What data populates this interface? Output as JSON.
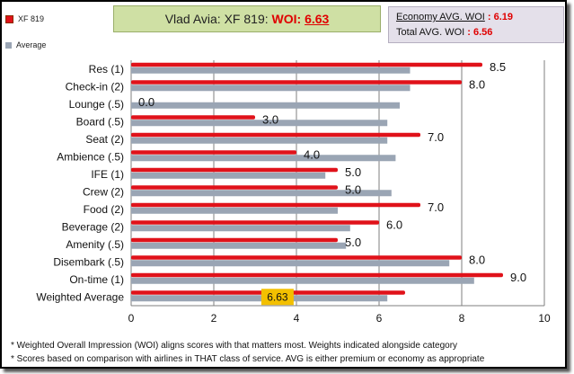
{
  "title": {
    "flight": "Vlad Avia: XF 819:",
    "woi_label": "WOI:",
    "woi_value": "6.63"
  },
  "averages": {
    "economy_label": "Economy AVG. WOI",
    "economy_value": ": 6.19",
    "total_label": "Total AVG. WOI",
    "total_value": ": 6.56"
  },
  "footnotes": [
    "* Weighted Overall Impression (WOI) aligns scores with that matters most. Weights indicated alongside category",
    "* Scores based on comparison with airlines in THAT class of service. AVG is either premium or economy as appropriate"
  ],
  "chart_data": {
    "type": "bar",
    "orientation": "horizontal",
    "categories": [
      "Res (1)",
      "Check-in (2)",
      "Lounge (.5)",
      "Board (.5)",
      "Seat (2)",
      "Ambience (.5)",
      "IFE (1)",
      "Crew (2)",
      "Food (2)",
      "Beverage (2)",
      "Amenity (.5)",
      "Disembark (.5)",
      "On-time (1)",
      "Weighted Average"
    ],
    "series": [
      {
        "name": "XF 819",
        "color": "#e0121a",
        "values": [
          8.5,
          8.0,
          0.0,
          3.0,
          7.0,
          4.0,
          5.0,
          5.0,
          7.0,
          6.0,
          5.0,
          8.0,
          9.0,
          6.63
        ],
        "labels": [
          "8.5",
          "8.0",
          "0.0",
          "3.0",
          "7.0",
          "4.0",
          "5.0",
          "5.0",
          "7.0",
          "6.0",
          "5.0",
          "8.0",
          "9.0",
          "6.63"
        ]
      },
      {
        "name": "Average",
        "color": "#9aa5b4",
        "values": [
          6.75,
          6.75,
          6.5,
          6.2,
          6.2,
          6.4,
          4.7,
          6.3,
          5.0,
          5.3,
          5.2,
          7.7,
          8.3,
          6.2
        ]
      }
    ],
    "xlim": [
      0,
      10
    ],
    "xticks": [
      0,
      2,
      4,
      6,
      8,
      10
    ],
    "grid": true,
    "legend_position": "top-left",
    "highlight_color": "#f3c000"
  }
}
